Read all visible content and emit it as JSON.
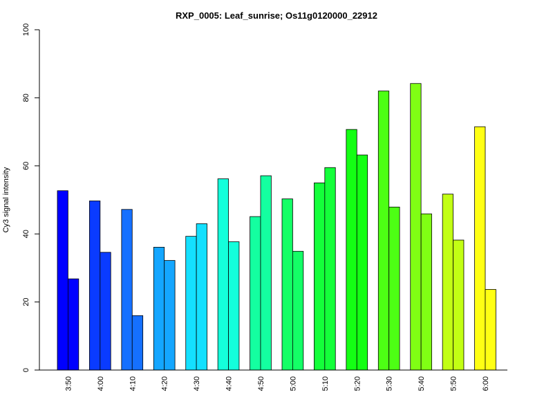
{
  "chart_data": {
    "type": "bar",
    "title": "RXP_0005: Leaf_sunrise; Os11g0120000_22912",
    "xlabel": "",
    "ylabel": "Cy3 signal intensity",
    "ylim": [
      0,
      100
    ],
    "yticks": [
      0,
      20,
      40,
      60,
      80,
      100
    ],
    "grid": false,
    "legend": "none",
    "categories": [
      "3:50",
      "4:00",
      "4:10",
      "4:20",
      "4:30",
      "4:40",
      "4:50",
      "5:00",
      "5:10",
      "5:20",
      "5:30",
      "5:40",
      "5:50",
      "6:00"
    ],
    "colors": [
      "#0000FF",
      "#0A3BFF",
      "#1570FF",
      "#14A6FF",
      "#14E0FF",
      "#14FFDB",
      "#14FFA0",
      "#14FF66",
      "#14FF3A",
      "#14FF14",
      "#4DFF14",
      "#80FF14",
      "#C2FF14",
      "#FFFF14"
    ],
    "series": [
      {
        "values": [
          52.7,
          49.7,
          47.2,
          36.1,
          39.3,
          56.2,
          45.1,
          50.3,
          55.0,
          70.7,
          82.0,
          84.2,
          51.7,
          71.5
        ]
      },
      {
        "values": [
          26.8,
          34.6,
          16.0,
          32.2,
          43.0,
          37.7,
          57.1,
          34.9,
          59.5,
          63.2,
          47.9,
          45.9,
          38.2,
          23.7
        ]
      }
    ]
  }
}
